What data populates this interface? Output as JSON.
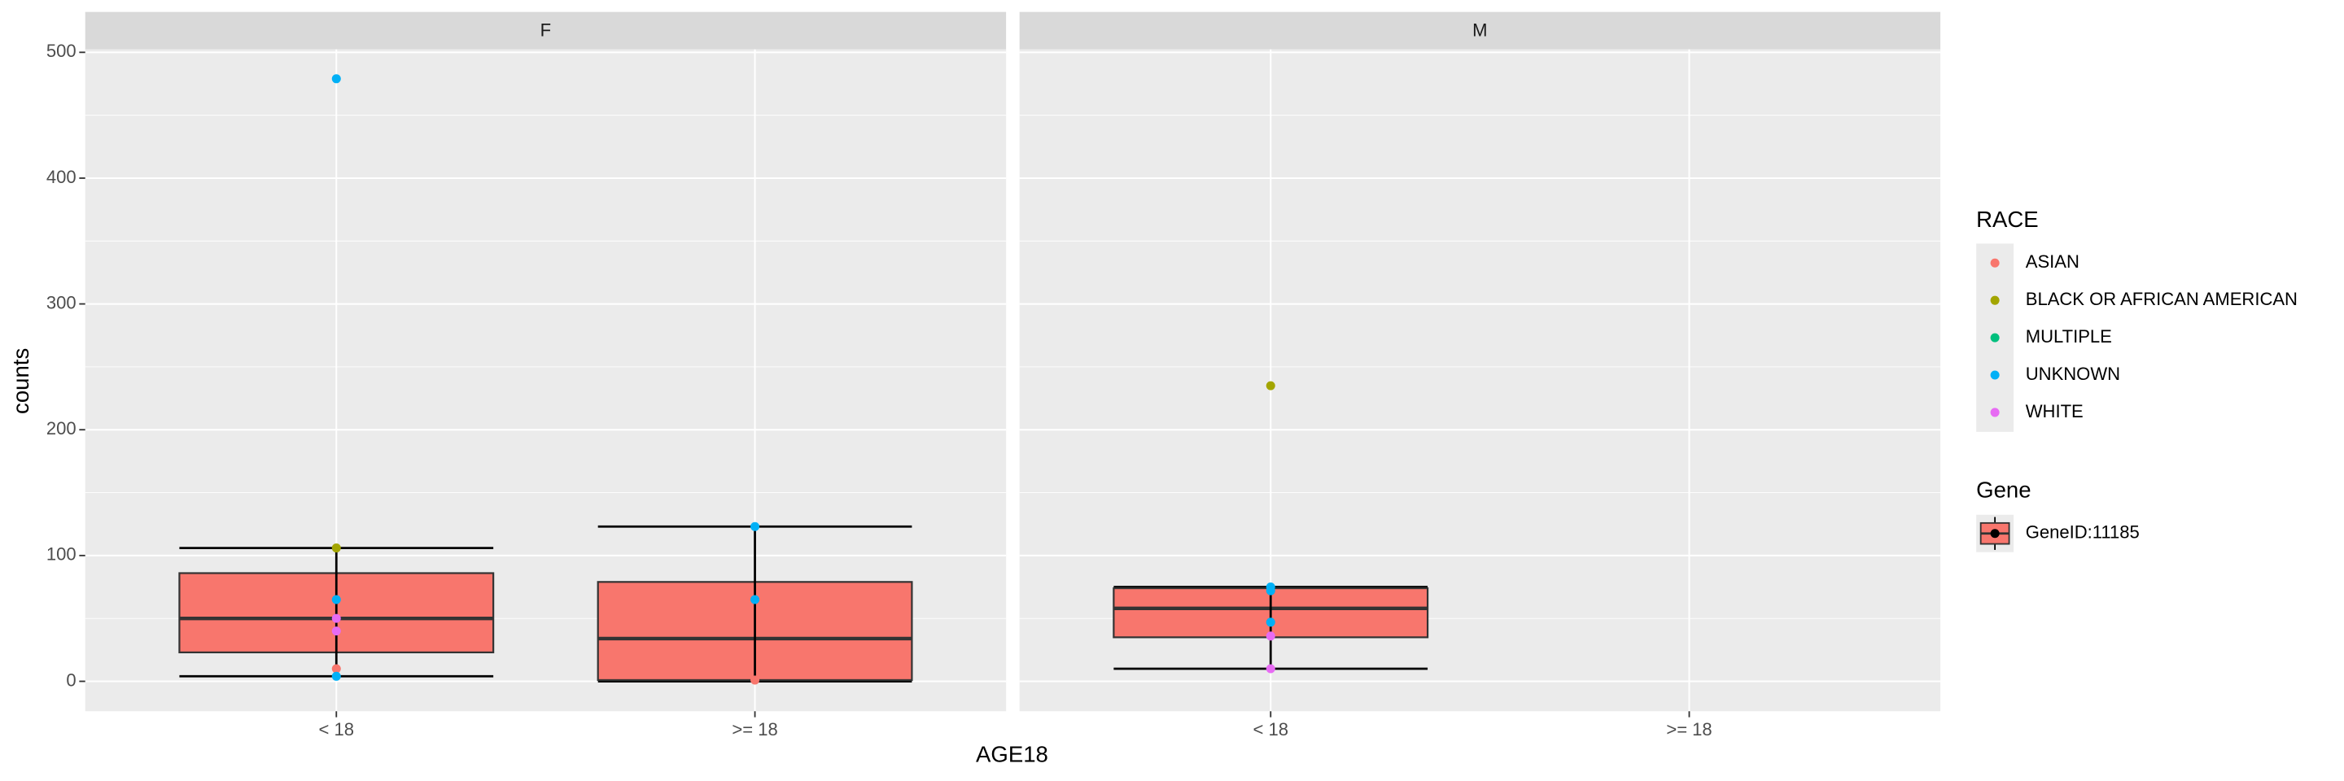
{
  "chart_data": {
    "type": "box",
    "x_label": "AGE18",
    "y_label": "counts",
    "categories": [
      "< 18",
      ">= 18"
    ],
    "ylim": [
      -23.8,
      502.4
    ],
    "yticks": [
      0,
      100,
      200,
      300,
      400,
      500
    ],
    "grid": true,
    "box_color": "#F8766D",
    "facets": [
      {
        "label": "F",
        "panels": [
          {
            "box": {
              "whisker_low": 4,
              "q1": 23,
              "median": 50,
              "q3": 86,
              "whisker_high": 106
            },
            "points": [
              {
                "race": "UNKNOWN",
                "value": 479
              },
              {
                "race": "BLACK OR AFRICAN AMERICAN",
                "value": 106
              },
              {
                "race": "UNKNOWN",
                "value": 65
              },
              {
                "race": "WHITE",
                "value": 50
              },
              {
                "race": "WHITE",
                "value": 40
              },
              {
                "race": "ASIAN",
                "value": 10
              },
              {
                "race": "UNKNOWN",
                "value": 4
              }
            ]
          },
          {
            "box": {
              "whisker_low": 0,
              "q1": 1,
              "median": 34,
              "q3": 79,
              "whisker_high": 123
            },
            "points": [
              {
                "race": "UNKNOWN",
                "value": 123
              },
              {
                "race": "UNKNOWN",
                "value": 65
              },
              {
                "race": "ASIAN",
                "value": 1
              }
            ]
          }
        ]
      },
      {
        "label": "M",
        "panels": [
          {
            "box": {
              "whisker_low": 10,
              "q1": 35,
              "median": 58,
              "q3": 74,
              "whisker_high": 75
            },
            "points": [
              {
                "race": "BLACK OR AFRICAN AMERICAN",
                "value": 235
              },
              {
                "race": "UNKNOWN",
                "value": 75
              },
              {
                "race": "UNKNOWN",
                "value": 72
              },
              {
                "race": "UNKNOWN",
                "value": 47
              },
              {
                "race": "WHITE",
                "value": 36
              },
              {
                "race": "WHITE",
                "value": 10
              }
            ]
          },
          {
            "points": []
          }
        ]
      }
    ],
    "race_legend": {
      "title": "RACE",
      "items": [
        {
          "name": "ASIAN",
          "color": "#F8766D"
        },
        {
          "name": "BLACK OR AFRICAN AMERICAN",
          "color": "#A3A500"
        },
        {
          "name": "MULTIPLE",
          "color": "#00BF7D"
        },
        {
          "name": "UNKNOWN",
          "color": "#00B0F6"
        },
        {
          "name": "WHITE",
          "color": "#E76BF3"
        }
      ]
    },
    "gene_legend": {
      "title": "Gene",
      "items": [
        {
          "name": "GeneID:11185"
        }
      ]
    }
  }
}
